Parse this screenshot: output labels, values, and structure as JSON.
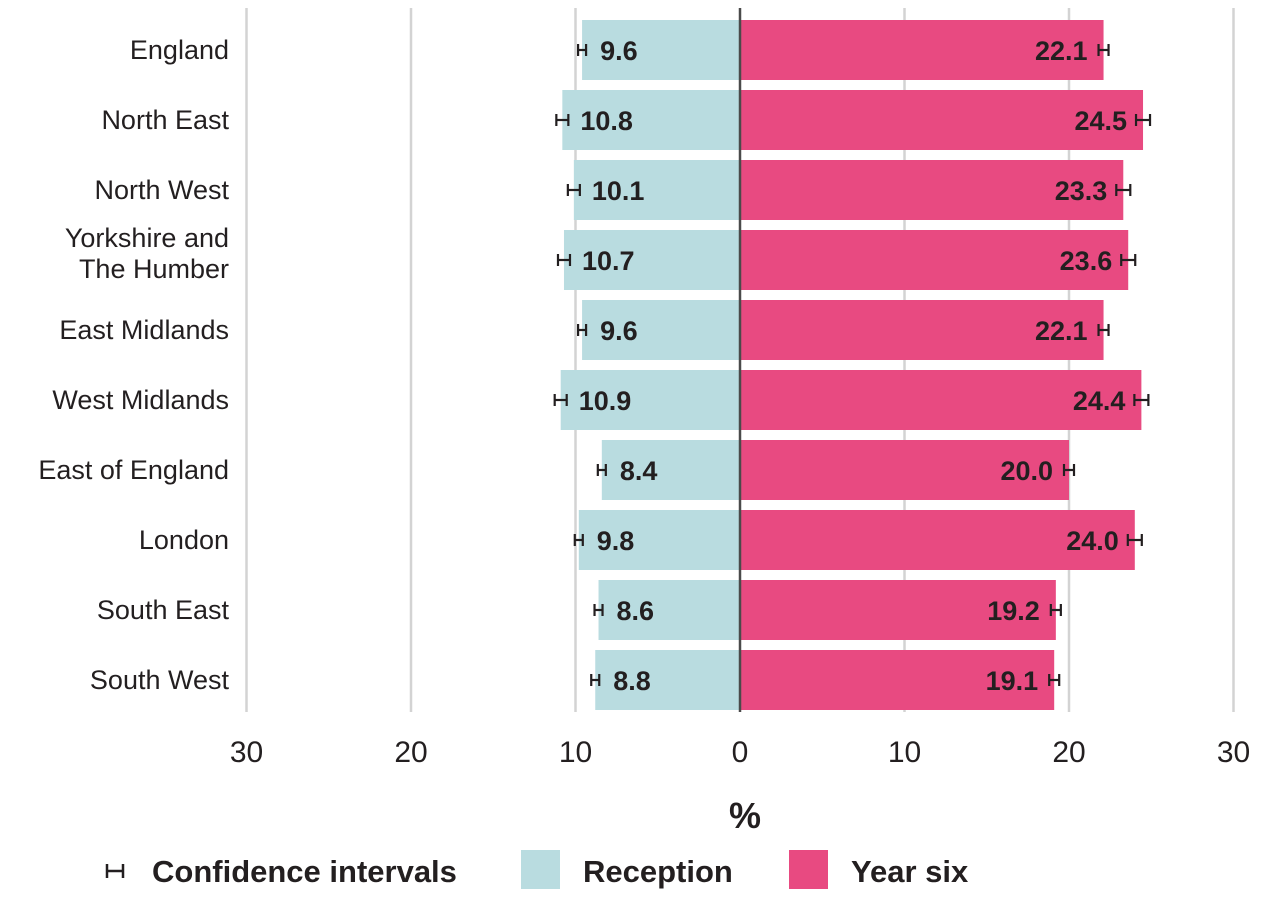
{
  "chart_data": {
    "type": "bar",
    "orientation": "horizontal-diverging",
    "categories": [
      "England",
      "North East",
      "North West",
      "Yorkshire and The Humber",
      "East Midlands",
      "West Midlands",
      "East of England",
      "London",
      "South East",
      "South West"
    ],
    "category_lines": [
      [
        "England"
      ],
      [
        "North East"
      ],
      [
        "North West"
      ],
      [
        "Yorkshire and",
        "The Humber"
      ],
      [
        "East Midlands"
      ],
      [
        "West Midlands"
      ],
      [
        "East of England"
      ],
      [
        "London"
      ],
      [
        "South East"
      ],
      [
        "South West"
      ]
    ],
    "series": [
      {
        "name": "Reception",
        "side": "left",
        "color": "#b9dce0",
        "values": [
          9.6,
          10.8,
          10.1,
          10.7,
          9.6,
          10.9,
          8.4,
          9.8,
          8.6,
          8.8
        ],
        "labels": [
          "9.6",
          "10.8",
          "10.1",
          "10.7",
          "9.6",
          "10.9",
          "8.4",
          "9.8",
          "8.6",
          "8.8"
        ]
      },
      {
        "name": "Year six",
        "side": "right",
        "color": "#e84a81",
        "values": [
          22.1,
          24.5,
          23.3,
          23.6,
          22.1,
          24.4,
          20.0,
          24.0,
          19.2,
          19.1
        ],
        "labels": [
          "22.1",
          "24.5",
          "23.3",
          "23.6",
          "22.1",
          "24.4",
          "20.0",
          "24.0",
          "19.2",
          "19.1"
        ]
      }
    ],
    "xlim": [
      -30,
      30
    ],
    "ticks": [
      -30,
      -20,
      -10,
      0,
      10,
      20,
      30
    ],
    "tick_labels": [
      "30",
      "20",
      "10",
      "0",
      "10",
      "20",
      "30"
    ],
    "xlabel": "%",
    "grid": true,
    "legend": {
      "position": "bottom",
      "entries": [
        "Confidence intervals",
        "Reception",
        "Year six"
      ]
    },
    "colors": {
      "reception": "#b9dce0",
      "year_six": "#e84a81",
      "gridline": "#d3d3d3",
      "axis": "#4a4a4a",
      "text": "#231f20"
    }
  }
}
